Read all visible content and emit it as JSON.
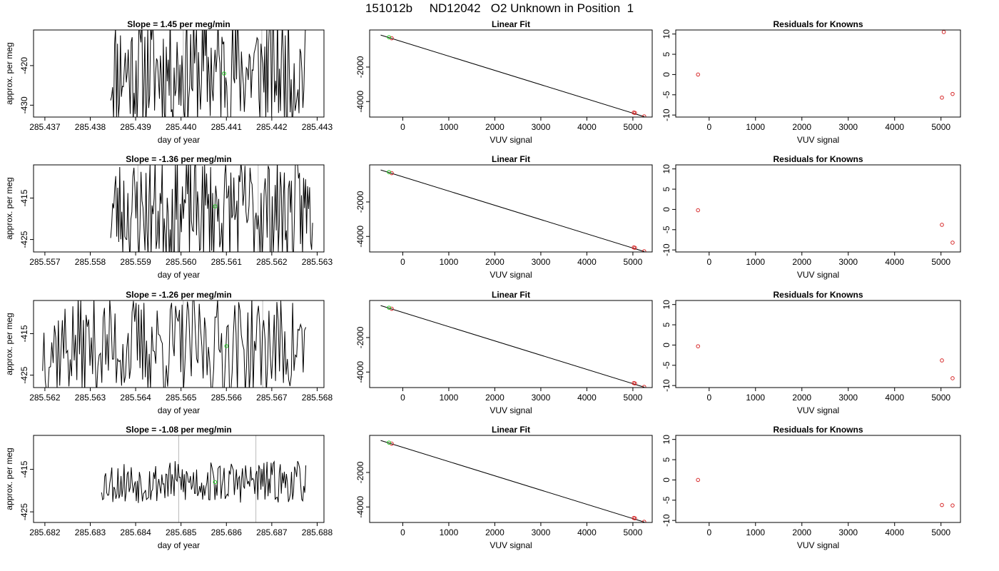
{
  "page_title": "151012b     ND12042   O2 Unknown in Position  1",
  "colors": {
    "line": "#000000",
    "marker_red": "#d62728",
    "marker_green": "#22cc22",
    "vline": "#bbbbbb",
    "axis": "#000000"
  },
  "chart_data": [
    {
      "type": "line",
      "row": 1,
      "panel": "time-series",
      "title": "Slope =  1.45  per meg/min",
      "xlabel": "day of year",
      "ylabel": "approx. per meg",
      "xlim": [
        285.43675,
        285.44315
      ],
      "ylim": [
        -433,
        -411
      ],
      "xticks": [
        "285.437",
        "285.438",
        "285.439",
        "285.440",
        "285.441",
        "285.442",
        "285.443"
      ],
      "xtick_values": [
        285.437,
        285.438,
        285.439,
        285.44,
        285.441,
        285.442,
        285.443
      ],
      "yticks": [
        "-420",
        "-430"
      ],
      "ytick_values": [
        -420,
        -430
      ],
      "x_start": 285.43845,
      "x_end": 285.44275,
      "amplitude": 15,
      "center": -421,
      "seed": 11,
      "vlines": [
        285.44005,
        285.44178
      ],
      "marker": {
        "x": 285.44095,
        "y": -422,
        "color": "green"
      }
    },
    {
      "type": "scatter",
      "row": 1,
      "panel": "linear-fit",
      "title": "Linear Fit",
      "xlabel": "VUV signal",
      "ylabel": "",
      "xlim": [
        -720,
        5420
      ],
      "ylim": [
        -4900,
        150
      ],
      "xticks": [
        "0",
        "1000",
        "2000",
        "3000",
        "4000",
        "5000"
      ],
      "xtick_values": [
        0,
        1000,
        2000,
        3000,
        4000,
        5000
      ],
      "yticks": [
        "-2000",
        "-4000"
      ],
      "ytick_values": [
        -2000,
        -4000
      ],
      "fit_line": {
        "x": [
          -480,
          5250
        ],
        "y": [
          -145,
          -4880
        ]
      },
      "points": [
        {
          "x": -240,
          "y": -330,
          "color": "red"
        },
        {
          "x": -300,
          "y": -270,
          "color": "green"
        },
        {
          "x": 5020,
          "y": -4640,
          "color": "red"
        },
        {
          "x": 5045,
          "y": -4660,
          "color": "red"
        },
        {
          "x": 5245,
          "y": -4860,
          "color": "red"
        }
      ]
    },
    {
      "type": "scatter",
      "row": 1,
      "panel": "residuals",
      "title": "Residuals for Knowns",
      "xlabel": "VUV signal",
      "ylabel": "",
      "xlim": [
        -720,
        5420
      ],
      "ylim": [
        -10.5,
        11
      ],
      "xticks": [
        "0",
        "1000",
        "2000",
        "3000",
        "4000",
        "5000"
      ],
      "xtick_values": [
        0,
        1000,
        2000,
        3000,
        4000,
        5000
      ],
      "yticks": [
        "10",
        "5",
        "0",
        "-5",
        "-10"
      ],
      "ytick_values": [
        10,
        5,
        0,
        -5,
        -10
      ],
      "points": [
        {
          "x": -240,
          "y": 0,
          "color": "red"
        },
        {
          "x": 5020,
          "y": -5.7,
          "color": "red"
        },
        {
          "x": 5060,
          "y": 10.5,
          "color": "red"
        },
        {
          "x": 5250,
          "y": -4.8,
          "color": "red"
        }
      ]
    },
    {
      "type": "line",
      "row": 2,
      "panel": "time-series",
      "title": "Slope =  -1.36  per meg/min",
      "xlabel": "day of year",
      "ylabel": "approx. per meg",
      "xlim": [
        285.55675,
        285.56315
      ],
      "ylim": [
        -428,
        -407
      ],
      "xticks": [
        "285.557",
        "285.558",
        "285.559",
        "285.560",
        "285.561",
        "285.562",
        "285.563"
      ],
      "xtick_values": [
        285.557,
        285.558,
        285.559,
        285.56,
        285.561,
        285.562,
        285.563
      ],
      "yticks": [
        "-415",
        "-425"
      ],
      "ytick_values": [
        -415,
        -425
      ],
      "x_start": 285.55845,
      "x_end": 285.5629,
      "amplitude": 13,
      "center": -418,
      "seed": 23,
      "vlines": [
        285.55905,
        285.5617
      ],
      "marker": {
        "x": 285.56075,
        "y": -417,
        "color": "green"
      }
    },
    {
      "type": "scatter",
      "row": 2,
      "panel": "linear-fit",
      "title": "Linear Fit",
      "xlabel": "VUV signal",
      "ylabel": "",
      "xlim": [
        -720,
        5420
      ],
      "ylim": [
        -4900,
        150
      ],
      "xticks": [
        "0",
        "1000",
        "2000",
        "3000",
        "4000",
        "5000"
      ],
      "xtick_values": [
        0,
        1000,
        2000,
        3000,
        4000,
        5000
      ],
      "yticks": [
        "-2000",
        "-4000"
      ],
      "ytick_values": [
        -2000,
        -4000
      ],
      "fit_line": {
        "x": [
          -480,
          5250
        ],
        "y": [
          -145,
          -4880
        ]
      },
      "points": [
        {
          "x": -240,
          "y": -330,
          "color": "red"
        },
        {
          "x": -300,
          "y": -270,
          "color": "green"
        },
        {
          "x": 5020,
          "y": -4640,
          "color": "red"
        },
        {
          "x": 5045,
          "y": -4660,
          "color": "red"
        },
        {
          "x": 5245,
          "y": -4860,
          "color": "red"
        }
      ]
    },
    {
      "type": "scatter",
      "row": 2,
      "panel": "residuals",
      "title": "Residuals for Knowns",
      "xlabel": "VUV signal",
      "ylabel": "",
      "xlim": [
        -720,
        5420
      ],
      "ylim": [
        -10.5,
        11
      ],
      "xticks": [
        "0",
        "1000",
        "2000",
        "3000",
        "4000",
        "5000"
      ],
      "xtick_values": [
        0,
        1000,
        2000,
        3000,
        4000,
        5000
      ],
      "yticks": [
        "10",
        "5",
        "0",
        "-5",
        "-10"
      ],
      "ytick_values": [
        10,
        5,
        0,
        -5,
        -10
      ],
      "points": [
        {
          "x": -240,
          "y": -0.2,
          "color": "red"
        },
        {
          "x": 5020,
          "y": -3.8,
          "color": "red"
        },
        {
          "x": 5250,
          "y": -8.2,
          "color": "red"
        }
      ]
    },
    {
      "type": "line",
      "row": 3,
      "panel": "time-series",
      "title": "Slope =  -1.26  per meg/min",
      "xlabel": "day of year",
      "ylabel": "approx. per meg",
      "xlim": [
        285.56175,
        285.56815
      ],
      "ylim": [
        -428,
        -407
      ],
      "xticks": [
        "285.562",
        "285.563",
        "285.564",
        "285.565",
        "285.566",
        "285.567",
        "285.568"
      ],
      "xtick_values": [
        285.562,
        285.563,
        285.564,
        285.565,
        285.566,
        285.567,
        285.568
      ],
      "yticks": [
        "-415",
        "-425"
      ],
      "ytick_values": [
        -415,
        -425
      ],
      "x_start": 285.56195,
      "x_end": 285.56775,
      "amplitude": 12,
      "center": -418,
      "seed": 37,
      "vlines": [
        285.56505,
        285.5668
      ],
      "marker": {
        "x": 285.566,
        "y": -418,
        "color": "green"
      }
    },
    {
      "type": "scatter",
      "row": 3,
      "panel": "linear-fit",
      "title": "Linear Fit",
      "xlabel": "VUV signal",
      "ylabel": "",
      "xlim": [
        -720,
        5420
      ],
      "ylim": [
        -4900,
        150
      ],
      "xticks": [
        "0",
        "1000",
        "2000",
        "3000",
        "4000",
        "5000"
      ],
      "xtick_values": [
        0,
        1000,
        2000,
        3000,
        4000,
        5000
      ],
      "yticks": [
        "-2000",
        "-4000"
      ],
      "ytick_values": [
        -2000,
        -4000
      ],
      "fit_line": {
        "x": [
          -480,
          5250
        ],
        "y": [
          -145,
          -4880
        ]
      },
      "points": [
        {
          "x": -240,
          "y": -330,
          "color": "red"
        },
        {
          "x": -300,
          "y": -270,
          "color": "green"
        },
        {
          "x": 5020,
          "y": -4640,
          "color": "red"
        },
        {
          "x": 5045,
          "y": -4660,
          "color": "red"
        },
        {
          "x": 5245,
          "y": -4860,
          "color": "red"
        }
      ]
    },
    {
      "type": "scatter",
      "row": 3,
      "panel": "residuals",
      "title": "Residuals for Knowns",
      "xlabel": "VUV signal",
      "ylabel": "",
      "xlim": [
        -720,
        5420
      ],
      "ylim": [
        -10.5,
        11
      ],
      "xticks": [
        "0",
        "1000",
        "2000",
        "3000",
        "4000",
        "5000"
      ],
      "xtick_values": [
        0,
        1000,
        2000,
        3000,
        4000,
        5000
      ],
      "yticks": [
        "10",
        "5",
        "0",
        "-5",
        "-10"
      ],
      "ytick_values": [
        10,
        5,
        0,
        -5,
        -10
      ],
      "points": [
        {
          "x": -240,
          "y": -0.3,
          "color": "red"
        },
        {
          "x": 5020,
          "y": -3.8,
          "color": "red"
        },
        {
          "x": 5250,
          "y": -8.2,
          "color": "red"
        }
      ]
    },
    {
      "type": "line",
      "row": 4,
      "panel": "time-series",
      "title": "Slope =  -1.08  per meg/min",
      "xlabel": "day of year",
      "ylabel": "approx. per meg",
      "xlim": [
        285.68175,
        285.68815
      ],
      "ylim": [
        -427.5,
        -407
      ],
      "xticks": [
        "285.682",
        "285.683",
        "285.684",
        "285.685",
        "285.686",
        "285.687",
        "285.688"
      ],
      "xtick_values": [
        285.682,
        285.683,
        285.684,
        285.685,
        285.686,
        285.687,
        285.688
      ],
      "yticks": [
        "-415",
        "-425"
      ],
      "ytick_values": [
        -415,
        -425
      ],
      "x_start": 285.68325,
      "x_end": 285.68775,
      "amplitude": 5,
      "center": -418,
      "seed": 53,
      "vlines": [
        285.68495,
        285.68665
      ],
      "marker": {
        "x": 285.68575,
        "y": -418,
        "color": "green"
      }
    },
    {
      "type": "scatter",
      "row": 4,
      "panel": "linear-fit",
      "title": "Linear Fit",
      "xlabel": "VUV signal",
      "ylabel": "",
      "xlim": [
        -720,
        5420
      ],
      "ylim": [
        -4900,
        150
      ],
      "xticks": [
        "0",
        "1000",
        "2000",
        "3000",
        "4000",
        "5000"
      ],
      "xtick_values": [
        0,
        1000,
        2000,
        3000,
        4000,
        5000
      ],
      "yticks": [
        "-2000",
        "-4000"
      ],
      "ytick_values": [
        -2000,
        -4000
      ],
      "fit_line": {
        "x": [
          -480,
          5250
        ],
        "y": [
          -145,
          -4880
        ]
      },
      "points": [
        {
          "x": -240,
          "y": -330,
          "color": "red"
        },
        {
          "x": -300,
          "y": -270,
          "color": "green"
        },
        {
          "x": 5020,
          "y": -4640,
          "color": "red"
        },
        {
          "x": 5045,
          "y": -4660,
          "color": "red"
        },
        {
          "x": 5245,
          "y": -4860,
          "color": "red"
        }
      ]
    },
    {
      "type": "scatter",
      "row": 4,
      "panel": "residuals",
      "title": "Residuals for Knowns",
      "xlabel": "VUV signal",
      "ylabel": "",
      "xlim": [
        -720,
        5420
      ],
      "ylim": [
        -10.5,
        11
      ],
      "xticks": [
        "0",
        "1000",
        "2000",
        "3000",
        "4000",
        "5000"
      ],
      "xtick_values": [
        0,
        1000,
        2000,
        3000,
        4000,
        5000
      ],
      "yticks": [
        "10",
        "5",
        "0",
        "-5",
        "-10"
      ],
      "ytick_values": [
        10,
        5,
        0,
        -5,
        -10
      ],
      "points": [
        {
          "x": -240,
          "y": 0,
          "color": "red"
        },
        {
          "x": 5020,
          "y": -6.2,
          "color": "red"
        },
        {
          "x": 5250,
          "y": -6.3,
          "color": "red"
        }
      ]
    }
  ]
}
